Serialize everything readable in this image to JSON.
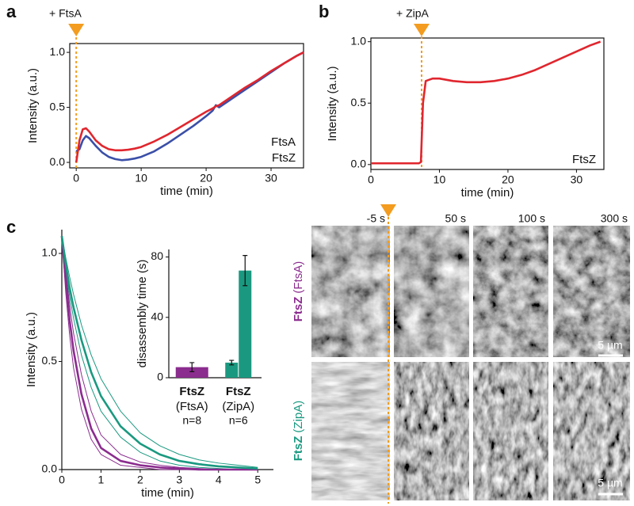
{
  "chart_data": [
    {
      "type": "line",
      "panel_label": "a",
      "annotation": "+ FtsA",
      "event_x": 0,
      "x_label": "time (min)",
      "y_label": "Intensity (a.u.)",
      "frame": "box",
      "legend": "lower right",
      "xlim": [
        -1,
        35
      ],
      "ylim": [
        -0.05,
        1.08
      ],
      "xticks": [
        0,
        10,
        20,
        30
      ],
      "yticks": [
        {
          "value": 0,
          "label": "0.0"
        },
        {
          "value": 0.5,
          "label": "0.5"
        },
        {
          "value": 1,
          "label": "1.0"
        }
      ],
      "x": [
        0,
        0.5,
        1,
        1.5,
        2,
        3,
        4,
        5,
        6,
        7,
        8,
        9,
        10,
        12,
        14,
        16,
        18,
        20,
        21,
        21.5,
        22,
        24,
        26,
        28,
        30,
        32,
        34,
        35
      ],
      "series": [
        {
          "name": "FtsA",
          "color": "#3b4fa8",
          "style": "mean",
          "values": [
            0.1,
            0.12,
            0.2,
            0.24,
            0.22,
            0.15,
            0.09,
            0.05,
            0.03,
            0.02,
            0.025,
            0.035,
            0.05,
            0.1,
            0.17,
            0.25,
            0.33,
            0.42,
            0.47,
            0.52,
            0.5,
            0.58,
            0.66,
            0.74,
            0.82,
            0.9,
            0.97,
            1.0
          ]
        },
        {
          "name": "FtsZ",
          "color": "#e0262e",
          "style": "mean",
          "values": [
            0.0,
            0.2,
            0.3,
            0.31,
            0.28,
            0.2,
            0.15,
            0.12,
            0.11,
            0.11,
            0.115,
            0.125,
            0.14,
            0.19,
            0.25,
            0.32,
            0.39,
            0.46,
            0.49,
            0.51,
            0.52,
            0.6,
            0.68,
            0.75,
            0.83,
            0.9,
            0.97,
            1.0
          ]
        }
      ]
    },
    {
      "type": "line",
      "panel_label": "b",
      "annotation": "+ ZipA",
      "event_x": 7.4,
      "x_label": "time (min)",
      "y_label": "Intensity (a.u.)",
      "frame": "box",
      "legend": "lower right",
      "xlim": [
        0,
        34
      ],
      "ylim": [
        -0.04,
        1.03
      ],
      "xticks": [
        0,
        10,
        20,
        30
      ],
      "yticks": [
        {
          "value": 0,
          "label": "0.0"
        },
        {
          "value": 0.5,
          "label": "0.5"
        },
        {
          "value": 1,
          "label": "1.0"
        }
      ],
      "x": [
        0,
        7,
        7.3,
        7.6,
        8,
        9,
        10,
        12,
        14,
        16,
        18,
        20,
        22,
        24,
        26,
        28,
        30,
        32,
        33.5
      ],
      "series": [
        {
          "name": "FtsZ",
          "color": "#e0262e",
          "style": "mean",
          "values": [
            0.01,
            0.01,
            0.02,
            0.5,
            0.68,
            0.7,
            0.7,
            0.68,
            0.67,
            0.67,
            0.68,
            0.7,
            0.73,
            0.77,
            0.82,
            0.87,
            0.92,
            0.97,
            1.0
          ]
        }
      ]
    },
    {
      "type": "line",
      "panel_label": "c",
      "x_label": "time (min)",
      "y_label": "Intensity (a.u.)",
      "frame": "axes",
      "xlim": [
        0,
        5.4
      ],
      "ylim": [
        0,
        1.11
      ],
      "xticks": [
        0,
        1,
        2,
        3,
        4,
        5
      ],
      "yticks": [
        {
          "value": 0,
          "label": "0.0"
        },
        {
          "value": 0.5,
          "label": "0.5"
        },
        {
          "value": 1,
          "label": "1.0"
        }
      ],
      "x": [
        0,
        0.1,
        0.2,
        0.3,
        0.5,
        0.75,
        1,
        1.5,
        2,
        2.5,
        3,
        3.5,
        4,
        4.5,
        5
      ],
      "series": [
        {
          "color": "#8b2c8f",
          "style": "bound",
          "values": [
            1.08,
            0.92,
            0.76,
            0.63,
            0.44,
            0.27,
            0.16,
            0.07,
            0.035,
            0.02,
            0.01,
            0.005,
            0,
            0,
            0
          ]
        },
        {
          "color": "#8b2c8f",
          "style": "bound",
          "values": [
            1.08,
            0.82,
            0.62,
            0.47,
            0.28,
            0.14,
            0.07,
            0.02,
            0.01,
            0,
            0,
            0,
            0,
            0,
            0
          ]
        },
        {
          "color": "#1a9980",
          "style": "bound",
          "values": [
            1.08,
            0.98,
            0.89,
            0.81,
            0.67,
            0.53,
            0.42,
            0.27,
            0.17,
            0.11,
            0.07,
            0.045,
            0.03,
            0.02,
            0.01
          ]
        },
        {
          "color": "#1a9980",
          "style": "bound",
          "values": [
            1.08,
            0.93,
            0.8,
            0.7,
            0.53,
            0.38,
            0.27,
            0.15,
            0.08,
            0.04,
            0.02,
            0.01,
            0.005,
            0,
            0
          ]
        },
        {
          "color": "#8b2c8f",
          "style": "mean",
          "values": [
            1.08,
            0.88,
            0.69,
            0.55,
            0.35,
            0.19,
            0.1,
            0.04,
            0.02,
            0.01,
            0.005,
            0,
            0,
            0,
            0
          ]
        },
        {
          "color": "#1a9980",
          "style": "mean",
          "values": [
            1.08,
            0.95,
            0.84,
            0.75,
            0.6,
            0.45,
            0.34,
            0.2,
            0.12,
            0.07,
            0.04,
            0.025,
            0.015,
            0.01,
            0.005
          ]
        }
      ]
    },
    {
      "type": "bar",
      "y_label": "disassembly time (s)",
      "ylim": [
        0,
        85
      ],
      "yticks": [
        0,
        40,
        80
      ],
      "categories": [
        "FtsZ",
        "FtsZ"
      ],
      "conditions": [
        "(FtsA)",
        "(ZipA)"
      ],
      "counts": [
        "n=8",
        "n=6"
      ],
      "category_colors": [
        "#8b2c8f",
        "#1a9980"
      ],
      "bars": [
        {
          "group": 0,
          "value": 7,
          "error": 3,
          "color": "#8b2c8f"
        },
        {
          "group": 1,
          "value": 10,
          "error": 1.5,
          "color": "#1a9980"
        },
        {
          "group": 1,
          "value": 71,
          "error": 10,
          "color": "#1a9980"
        }
      ]
    }
  ],
  "image_panel": {
    "times": [
      "-5 s",
      "50 s",
      "100 s",
      "300 s"
    ],
    "rows": [
      {
        "protein": "FtsZ",
        "condition": "(FtsA)"
      },
      {
        "protein": "FtsZ",
        "condition": "(ZipA)"
      }
    ],
    "scale_bar": "5 µm"
  }
}
